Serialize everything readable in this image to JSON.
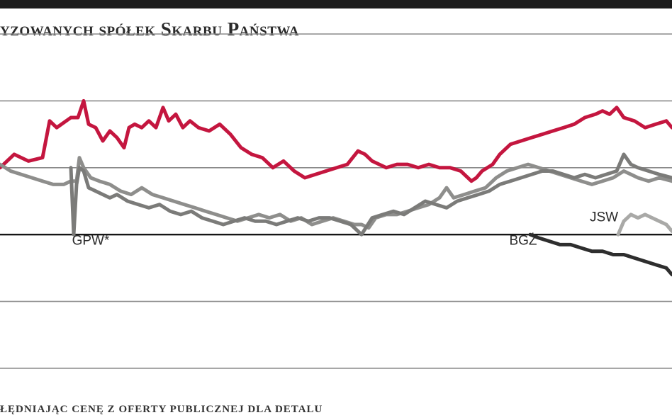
{
  "header": {
    "title": "yzowanych spółek Skarbu Państwa"
  },
  "footer": {
    "note": "ŁĘDNIAJĄC CENĘ Z OFERTY PUBLICZNEJ DLA DETALU"
  },
  "chart_data": {
    "type": "line",
    "title": "yzowanych spółek Skarbu Państwa",
    "xlabel": "",
    "ylabel": "",
    "grid": true,
    "series": [
      {
        "color": "#c4163f",
        "x": [
          0,
          20,
          40,
          60,
          70,
          80,
          100,
          110,
          118,
          125,
          135,
          145,
          155,
          165,
          175,
          182,
          190,
          200,
          210,
          220,
          230,
          238,
          248,
          258,
          268,
          280,
          295,
          310,
          325,
          340,
          355,
          370,
          385,
          400,
          415,
          430,
          445,
          460,
          475,
          490,
          505,
          515,
          525,
          535,
          545,
          560,
          575,
          590,
          605,
          620,
          635,
          650,
          665,
          672,
          680,
          695,
          705,
          720,
          735,
          750,
          765,
          780,
          795,
          810,
          825,
          840,
          850,
          860,
          870,
          880,
          895,
          910,
          925,
          940,
          948
        ],
        "values": [
          100,
          104,
          102,
          103,
          114,
          112,
          115,
          115,
          120,
          113,
          112,
          108,
          111,
          109,
          106,
          112,
          113,
          112,
          114,
          112,
          118,
          114,
          116,
          112,
          114,
          112,
          111,
          113,
          110,
          106,
          104,
          103,
          100,
          102,
          99,
          97,
          98,
          99,
          100,
          101,
          105,
          104,
          102,
          101,
          100,
          101,
          101,
          100,
          101,
          100,
          100,
          99,
          96,
          97,
          99,
          101,
          104,
          107,
          108,
          109,
          110,
          111,
          112,
          113,
          115,
          116,
          117,
          116,
          118,
          115,
          114,
          112,
          113,
          114,
          112
        ]
      },
      {
        "color": "#8e8e8c",
        "x": [
          0,
          15,
          30,
          45,
          60,
          75,
          90,
          100,
          108,
          112,
          118,
          128,
          140,
          155,
          170,
          185,
          200,
          215,
          230,
          245,
          260,
          275,
          290,
          305,
          320,
          335,
          350,
          365,
          380,
          395,
          410,
          425,
          440,
          455,
          470,
          485,
          500,
          510,
          520,
          530,
          545,
          560,
          575,
          590,
          605,
          620,
          630,
          640,
          655,
          670,
          685,
          700,
          715,
          730,
          745,
          760,
          775,
          790,
          805,
          820,
          835,
          850,
          865,
          880,
          890,
          900,
          915,
          930,
          948
        ],
        "values": [
          101,
          99,
          98,
          97,
          96,
          95,
          95,
          96,
          96,
          103,
          100,
          97,
          96,
          95,
          93,
          92,
          94,
          92,
          91,
          90,
          89,
          88,
          87,
          86,
          85,
          84,
          85,
          86,
          85,
          86,
          84,
          85,
          83,
          84,
          85,
          84,
          83,
          83,
          82,
          85,
          86,
          86,
          87,
          88,
          89,
          91,
          94,
          91,
          92,
          93,
          94,
          97,
          99,
          100,
          101,
          100,
          99,
          98,
          97,
          96,
          95,
          96,
          97,
          99,
          98,
          97,
          96,
          97,
          96
        ]
      },
      {
        "color": "#7b7b79",
        "x": [
          100,
          104,
          108,
          112,
          118,
          125,
          135,
          145,
          155,
          165,
          180,
          195,
          210,
          225,
          240,
          255,
          270,
          285,
          300,
          315,
          330,
          345,
          360,
          375,
          390,
          405,
          420,
          435,
          450,
          465,
          480,
          495,
          510,
          525,
          540,
          555,
          570,
          585,
          600,
          615,
          630,
          645,
          660,
          675,
          690,
          705,
          720,
          735,
          750,
          765,
          780,
          795,
          810,
          825,
          840,
          855,
          870,
          880,
          890,
          900,
          915,
          930,
          948
        ],
        "values": [
          100,
          80,
          95,
          100,
          99,
          94,
          93,
          92,
          91,
          92,
          90,
          89,
          88,
          89,
          87,
          86,
          87,
          85,
          84,
          83,
          84,
          85,
          84,
          84,
          83,
          84,
          85,
          84,
          85,
          85,
          84,
          83,
          80,
          85,
          86,
          87,
          86,
          88,
          90,
          89,
          88,
          90,
          91,
          92,
          93,
          95,
          96,
          97,
          98,
          99,
          99,
          98,
          97,
          98,
          97,
          98,
          99,
          104,
          101,
          100,
          99,
          98,
          97
        ]
      },
      {
        "color": "#2e2e2e",
        "x": [
          748,
          760,
          775,
          790,
          805,
          820,
          835,
          850,
          865,
          880,
          895,
          910,
          925,
          940,
          948
        ],
        "values": [
          80,
          79,
          78,
          77,
          77,
          76,
          75,
          75,
          74,
          74,
          73,
          72,
          71,
          70,
          68
        ]
      },
      {
        "color": "#a9a9a7",
        "x": [
          872,
          880,
          890,
          900,
          910,
          920,
          930,
          940,
          948
        ],
        "values": [
          80,
          84,
          86,
          85,
          86,
          85,
          84,
          83,
          81
        ]
      }
    ],
    "annotations": [
      {
        "text": "GPW*",
        "x": 128,
        "y": 77
      },
      {
        "text": "BGŻ",
        "x": 738,
        "y": 77
      },
      {
        "text": "JSW",
        "x": 852,
        "y": 84
      }
    ],
    "xlim": [
      0,
      948
    ],
    "ylim": [
      40,
      140
    ],
    "gridlines": [
      40,
      60,
      80,
      100,
      120,
      140
    ],
    "baseline": 80
  }
}
